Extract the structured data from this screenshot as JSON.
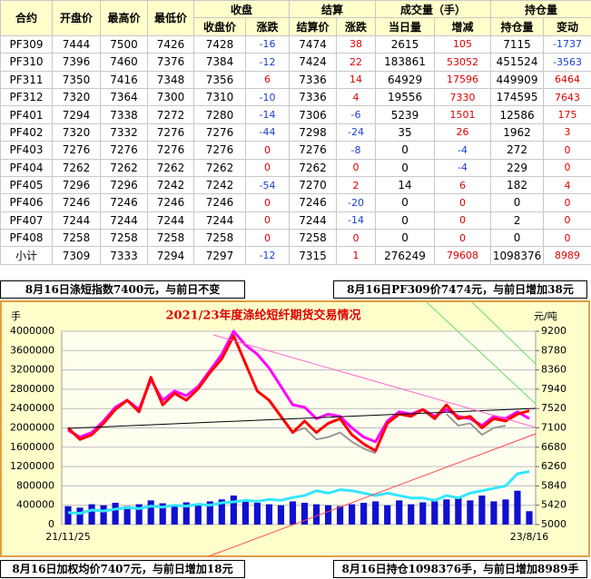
{
  "table": {
    "groups": [
      "合约",
      "开盘价",
      "最高价",
      "最低价",
      "收盘",
      "结算",
      "成交量（手）",
      "持仓量"
    ],
    "subheaders": [
      "收盘价",
      "涨跌",
      "结算价",
      "涨跌",
      "当日量",
      "增减",
      "持仓量",
      "变动"
    ],
    "rows": [
      [
        "PF309",
        "7444",
        "7500",
        "7426",
        "7428",
        "-16",
        "7474",
        "38",
        "2615",
        "105",
        "7115",
        "-1737"
      ],
      [
        "PF310",
        "7396",
        "7460",
        "7376",
        "7384",
        "-12",
        "7424",
        "22",
        "183861",
        "53052",
        "451524",
        "-3563"
      ],
      [
        "PF311",
        "7350",
        "7416",
        "7348",
        "7356",
        "6",
        "7336",
        "14",
        "64929",
        "17596",
        "449909",
        "6464"
      ],
      [
        "PF312",
        "7320",
        "7364",
        "7300",
        "7310",
        "-10",
        "7336",
        "4",
        "19556",
        "7330",
        "174595",
        "7643"
      ],
      [
        "PF401",
        "7294",
        "7338",
        "7272",
        "7280",
        "-14",
        "7306",
        "-6",
        "5239",
        "1501",
        "12586",
        "175"
      ],
      [
        "PF402",
        "7320",
        "7332",
        "7276",
        "7276",
        "-44",
        "7298",
        "-24",
        "35",
        "26",
        "1962",
        "3"
      ],
      [
        "PF403",
        "7276",
        "7276",
        "7276",
        "7276",
        "0",
        "7276",
        "-8",
        "0",
        "-4",
        "272",
        "0"
      ],
      [
        "PF404",
        "7262",
        "7262",
        "7262",
        "7262",
        "0",
        "7262",
        "0",
        "0",
        "-4",
        "229",
        "0"
      ],
      [
        "PF405",
        "7296",
        "7296",
        "7242",
        "7242",
        "-54",
        "7270",
        "2",
        "14",
        "6",
        "182",
        "4"
      ],
      [
        "PF406",
        "7246",
        "7246",
        "7246",
        "7246",
        "0",
        "7246",
        "-20",
        "0",
        "0",
        "0",
        "0"
      ],
      [
        "PF407",
        "7244",
        "7244",
        "7244",
        "7244",
        "0",
        "7244",
        "-14",
        "0",
        "0",
        "2",
        "0"
      ],
      [
        "PF408",
        "7258",
        "7258",
        "7258",
        "7258",
        "0",
        "7258",
        "0",
        "0",
        "0",
        "0",
        "0"
      ],
      [
        "小计",
        "7309",
        "7333",
        "7294",
        "7297",
        "-12",
        "7315",
        "1",
        "276249",
        "79608",
        "1098376",
        "8989"
      ]
    ]
  },
  "notes": [
    "8月16日涤短指数7400元，与前日不变",
    "8月16日PF309价7474元，与前日增加38元",
    "8月16日加权均价7407元，与前日增加18元",
    "8月16日持仓1098376手，与前日增加8989手"
  ],
  "chart_data": {
    "type": "bar-line",
    "title": "2021/23年度涤纶短纤期货交易情况",
    "y_label": "手",
    "y2_label": "元/吨",
    "categories": [
      "21/11/25",
      null,
      null,
      null,
      null,
      null,
      null,
      null,
      null,
      null,
      null,
      null,
      null,
      null,
      null,
      null,
      null,
      null,
      null,
      null,
      null,
      null,
      null,
      null,
      null,
      null,
      null,
      null,
      null,
      null,
      null,
      null,
      null,
      null,
      null,
      null,
      null,
      null,
      null,
      "23/8/16"
    ],
    "ylim": [
      0,
      4000000
    ],
    "yticks": [
      0,
      400000,
      800000,
      1200000,
      1600000,
      2000000,
      2400000,
      2800000,
      3200000,
      3600000,
      4000000
    ],
    "y2lim": [
      5000,
      9200
    ],
    "y2ticks": [
      5000,
      5420,
      5840,
      6260,
      6680,
      7100,
      7520,
      7940,
      8360,
      8780,
      9200
    ],
    "grid": true,
    "series": [
      {
        "kind": "bar",
        "color": "#1010d0",
        "values": [
          380000,
          350000,
          420000,
          400000,
          450000,
          380000,
          420000,
          500000,
          440000,
          400000,
          460000,
          420000,
          480000,
          520000,
          600000,
          500000,
          450000,
          420000,
          400000,
          480000,
          450000,
          420000,
          400000,
          380000,
          420000,
          450000,
          480000,
          400000,
          500000,
          420000,
          460000,
          480000,
          520000,
          550000,
          500000,
          600000,
          480000,
          520000,
          700000,
          276249
        ]
      },
      {
        "kind": "line",
        "color": "#33e6ff",
        "values": [
          250000,
          230000,
          300000,
          280000,
          320000,
          350000,
          330000,
          380000,
          360000,
          400000,
          380000,
          420000,
          400000,
          450000,
          470000,
          500000,
          480000,
          520000,
          500000,
          560000,
          600000,
          700000,
          650000,
          720000,
          700000,
          650000,
          600000,
          650000,
          600000,
          550000,
          550000,
          500000,
          600000,
          550000,
          650000,
          700000,
          750000,
          800000,
          1050000,
          1098376
        ]
      },
      {
        "kind": "line",
        "color": "#999999",
        "axis": "y2",
        "values": [
          null,
          null,
          null,
          null,
          null,
          null,
          null,
          null,
          null,
          null,
          null,
          null,
          null,
          null,
          null,
          null,
          null,
          null,
          null,
          7000,
          7100,
          6850,
          6900,
          7000,
          6800,
          6650,
          6550,
          null,
          null,
          null,
          null,
          null,
          7400,
          7150,
          7200,
          6950,
          7100,
          7150,
          null,
          null
        ]
      },
      {
        "kind": "line",
        "color": "#ff00ff",
        "axis": "y2",
        "values": [
          7050,
          6900,
          7000,
          7250,
          7550,
          7700,
          7500,
          8150,
          7700,
          7900,
          7800,
          8000,
          8350,
          8700,
          9200,
          8900,
          8700,
          8400,
          8000,
          7600,
          7550,
          7300,
          7400,
          7350,
          7100,
          6900,
          6800,
          7250,
          7450,
          7400,
          7500,
          7350,
          7500,
          7350,
          7300,
          7150,
          7350,
          7300,
          7450,
          7300
        ]
      },
      {
        "kind": "line",
        "color": "#ff0000",
        "axis": "y2",
        "values": [
          7100,
          6850,
          6950,
          7200,
          7500,
          7700,
          7450,
          8200,
          7600,
          7850,
          7700,
          7950,
          8300,
          8600,
          9100,
          8500,
          7900,
          7700,
          7350,
          7000,
          7250,
          7000,
          7200,
          7300,
          6950,
          6750,
          6600,
          7200,
          7400,
          7350,
          7500,
          7300,
          7600,
          7300,
          7350,
          7100,
          7300,
          7250,
          7400,
          7474
        ]
      }
    ]
  }
}
